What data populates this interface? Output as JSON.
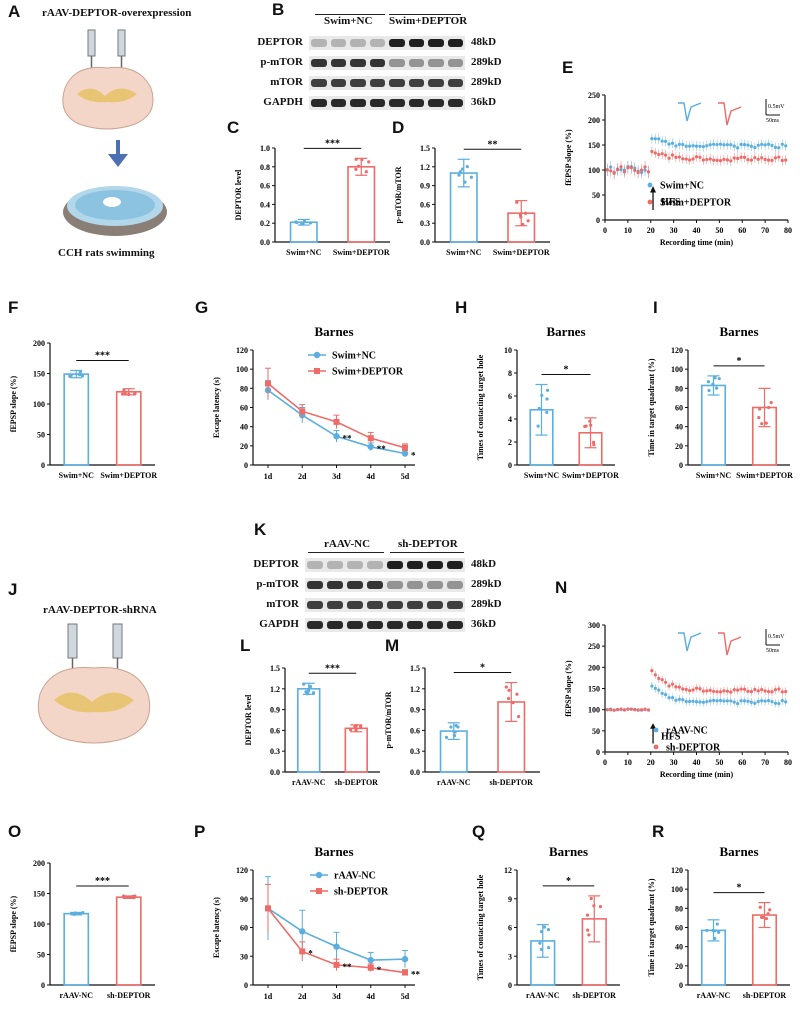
{
  "panels": {
    "A": {
      "letter": "A",
      "title": "rAAV-DEPTOR-overexpression",
      "caption": "CCH rats swimming"
    },
    "B": {
      "letter": "B",
      "groups": [
        "Swim+NC",
        "Swim+DEPTOR"
      ],
      "rows": [
        {
          "name": "DEPTOR",
          "kd": "48kD"
        },
        {
          "name": "p-mTOR",
          "kd": "289kD"
        },
        {
          "name": "mTOR",
          "kd": "289kD"
        },
        {
          "name": "GAPDH",
          "kd": "36kD"
        }
      ]
    },
    "J": {
      "letter": "J",
      "title": "rAAV-DEPTOR-shRNA"
    },
    "K": {
      "letter": "K",
      "groups": [
        "rAAV-NC",
        "sh-DEPTOR"
      ],
      "rows": [
        {
          "name": "DEPTOR",
          "kd": "48kD"
        },
        {
          "name": "p-mTOR",
          "kd": "289kD"
        },
        {
          "name": "mTOR",
          "kd": "289kD"
        },
        {
          "name": "GAPDH",
          "kd": "36kD"
        }
      ]
    }
  },
  "colors": {
    "blue": "#5aaee0",
    "red": "#ee6b68"
  },
  "chart_data": [
    {
      "id": "C",
      "letter": "C",
      "type": "bar",
      "ylabel": "DEPTOR level",
      "categories": [
        "Swim+NC",
        "Swim+DEPTOR"
      ],
      "values": [
        0.21,
        0.8
      ],
      "errors": [
        0.03,
        0.09
      ],
      "ylim": [
        0,
        1.0
      ],
      "yticks": [
        "0.0",
        "0.2",
        "0.4",
        "0.6",
        "0.8",
        "1.0"
      ],
      "significance": "***"
    },
    {
      "id": "D",
      "letter": "D",
      "type": "bar",
      "ylabel": "p-mTOR/mTOR",
      "categories": [
        "Swim+NC",
        "Swim+DEPTOR"
      ],
      "values": [
        1.1,
        0.46
      ],
      "errors": [
        0.22,
        0.2
      ],
      "ylim": [
        0,
        1.5
      ],
      "yticks": [
        "0.0",
        "0.3",
        "0.6",
        "0.9",
        "1.2",
        "1.5"
      ],
      "significance": "**"
    },
    {
      "id": "E",
      "letter": "E",
      "type": "line",
      "ylabel": "fEPSP slope (%)",
      "xlabel": "Recording time (min)",
      "xticks": [
        "0",
        "10",
        "20",
        "30",
        "40",
        "50",
        "60",
        "70",
        "80"
      ],
      "yticks": [
        "0",
        "50",
        "100",
        "150",
        "200",
        "250"
      ],
      "ylim": [
        0,
        250
      ],
      "xlim": [
        0,
        80
      ],
      "arrow_label": "HFS",
      "scale_v": "0.5mV",
      "scale_t": "50ms",
      "series": [
        {
          "name": "Swim+NC",
          "baseline": 100,
          "post": 148
        },
        {
          "name": "Swim+DEPTOR",
          "baseline": 100,
          "post": 122
        }
      ]
    },
    {
      "id": "F",
      "letter": "F",
      "type": "bar",
      "ylabel": "fEPSP slope (%)",
      "categories": [
        "Swim+NC",
        "Swim+DEPTOR"
      ],
      "values": [
        149,
        120
      ],
      "errors": [
        6,
        5
      ],
      "ylim": [
        0,
        200
      ],
      "yticks": [
        "0",
        "50",
        "100",
        "150",
        "200"
      ],
      "significance": "***"
    },
    {
      "id": "G",
      "letter": "G",
      "type": "line",
      "title": "Barnes",
      "ylabel": "Escape latency (s)",
      "categories": [
        "1d",
        "2d",
        "3d",
        "4d",
        "5d"
      ],
      "ylim": [
        0,
        120
      ],
      "yticks": [
        "0",
        "20",
        "40",
        "60",
        "80",
        "100",
        "120"
      ],
      "series": [
        {
          "name": "Swim+NC",
          "values": [
            78,
            52,
            30,
            19,
            12
          ],
          "errors": [
            10,
            8,
            6,
            4,
            3
          ]
        },
        {
          "name": "Swim+DEPTOR",
          "values": [
            85,
            56,
            45,
            28,
            18
          ],
          "errors": [
            16,
            7,
            7,
            6,
            4
          ]
        }
      ],
      "sig": [
        "",
        "",
        "**",
        "**",
        "*"
      ]
    },
    {
      "id": "H",
      "letter": "H",
      "type": "bar",
      "title": "Barnes",
      "ylabel": "Times of contacting target hole",
      "categories": [
        "Swim+NC",
        "Swim+DEPTOR"
      ],
      "values": [
        4.8,
        2.8
      ],
      "errors": [
        2.2,
        1.3
      ],
      "ylim": [
        0,
        10
      ],
      "yticks": [
        "0",
        "2",
        "4",
        "6",
        "8",
        "10"
      ],
      "significance": "*"
    },
    {
      "id": "I",
      "letter": "I",
      "type": "bar",
      "title": "Barnes",
      "ylabel": "Time in target quadrant (%)",
      "categories": [
        "Swim+NC",
        "Swim+DEPTOR"
      ],
      "values": [
        83,
        60
      ],
      "errors": [
        10,
        20
      ],
      "ylim": [
        0,
        120
      ],
      "yticks": [
        "0",
        "20",
        "40",
        "60",
        "80",
        "100",
        "120"
      ],
      "significance": "*"
    },
    {
      "id": "L",
      "letter": "L",
      "type": "bar",
      "ylabel": "DEPTOR level",
      "categories": [
        "rAAV-NC",
        "sh-DEPTOR"
      ],
      "values": [
        1.2,
        0.63
      ],
      "errors": [
        0.08,
        0.05
      ],
      "ylim": [
        0,
        1.5
      ],
      "yticks": [
        "0.0",
        "0.3",
        "0.6",
        "0.9",
        "1.2",
        "1.5"
      ],
      "significance": "***"
    },
    {
      "id": "M",
      "letter": "M",
      "type": "bar",
      "ylabel": "p-mTOR/mTOR",
      "categories": [
        "rAAV-NC",
        "sh-DEPTOR"
      ],
      "values": [
        0.59,
        1.01
      ],
      "errors": [
        0.12,
        0.28
      ],
      "ylim": [
        0,
        1.5
      ],
      "yticks": [
        "0.0",
        "0.3",
        "0.6",
        "0.9",
        "1.2",
        "1.5"
      ],
      "significance": "*"
    },
    {
      "id": "N",
      "letter": "N",
      "type": "line",
      "ylabel": "fEPSP slope (%)",
      "xlabel": "Recording time (min)",
      "xticks": [
        "0",
        "10",
        "20",
        "30",
        "40",
        "50",
        "60",
        "70",
        "80"
      ],
      "yticks": [
        "0",
        "50",
        "100",
        "150",
        "200",
        "250",
        "300"
      ],
      "ylim": [
        0,
        300
      ],
      "xlim": [
        0,
        80
      ],
      "arrow_label": "HFS",
      "scale_v": "0.5mV",
      "scale_t": "50ms",
      "series": [
        {
          "name": "rAAV-NC",
          "baseline": 100,
          "post": 118
        },
        {
          "name": "sh-DEPTOR",
          "baseline": 100,
          "post": 145
        }
      ]
    },
    {
      "id": "O",
      "letter": "O",
      "type": "bar",
      "ylabel": "fEPSP slope (%)",
      "categories": [
        "rAAV-NC",
        "sh-DEPTOR"
      ],
      "values": [
        117,
        144
      ],
      "errors": [
        2,
        2
      ],
      "ylim": [
        0,
        200
      ],
      "yticks": [
        "0",
        "50",
        "100",
        "150",
        "200"
      ],
      "significance": "***"
    },
    {
      "id": "P",
      "letter": "P",
      "type": "line",
      "title": "Barnes",
      "ylabel": "Escape latency (s)",
      "categories": [
        "1d",
        "2d",
        "3d",
        "4d",
        "5d"
      ],
      "ylim": [
        0,
        120
      ],
      "yticks": [
        "0",
        "30",
        "60",
        "90",
        "120"
      ],
      "series": [
        {
          "name": "rAAV-NC",
          "values": [
            80,
            56,
            40,
            26,
            27
          ],
          "errors": [
            33,
            22,
            15,
            8,
            9
          ]
        },
        {
          "name": "sh-DEPTOR",
          "values": [
            80,
            35,
            21,
            18,
            13
          ],
          "errors": [
            25,
            10,
            6,
            4,
            3
          ]
        }
      ],
      "sig": [
        "",
        "*",
        "**",
        "*",
        "**"
      ]
    },
    {
      "id": "Q",
      "letter": "Q",
      "type": "bar",
      "title": "Barnes",
      "ylabel": "Times of contacting target hole",
      "categories": [
        "rAAV-NC",
        "sh-DEPTOR"
      ],
      "values": [
        4.6,
        6.9
      ],
      "errors": [
        1.7,
        2.4
      ],
      "ylim": [
        0,
        12
      ],
      "yticks": [
        "0",
        "3",
        "6",
        "9",
        "12"
      ],
      "significance": "*"
    },
    {
      "id": "R",
      "letter": "R",
      "type": "bar",
      "title": "Barnes",
      "ylabel": "Time in target quadrant (%)",
      "categories": [
        "rAAV-NC",
        "sh-DEPTOR"
      ],
      "values": [
        57,
        73
      ],
      "errors": [
        11,
        13
      ],
      "ylim": [
        0,
        120
      ],
      "yticks": [
        "0",
        "20",
        "40",
        "60",
        "80",
        "100",
        "120"
      ],
      "significance": "*"
    }
  ]
}
